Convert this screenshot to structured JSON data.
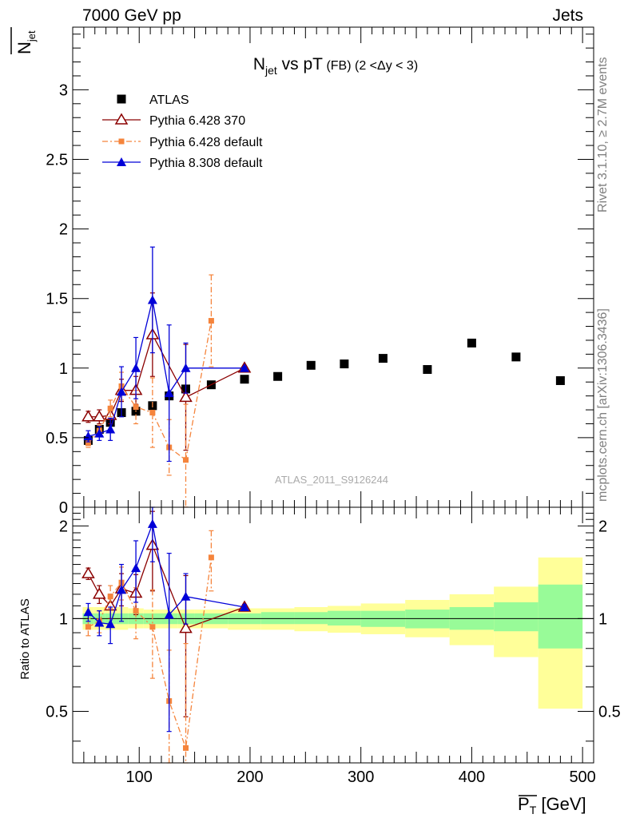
{
  "header": {
    "left": "7000 GeV pp",
    "right": "Jets"
  },
  "side_labels": {
    "rivet": "Rivet 3.1.10, ≥ 2.7M events",
    "mcplots": "mcplots.cern.ch [arXiv:1306.3436]"
  },
  "chart_data": [
    {
      "type": "scatter",
      "title": "N_jet vs pT (FB) (2 < Δy < 3)",
      "title_parts": {
        "main": "N",
        "sub": "jet",
        "mid": " vs pT",
        "small": " (FB) (2 <Δy < 3)"
      },
      "ylabel": "N_jet",
      "ylabel_parts": {
        "main": "N",
        "sub": "jet"
      },
      "xlabel": "P_T [GeV]",
      "xlabel_parts": {
        "main": "P",
        "sub": "T",
        "unit": " [GeV]"
      },
      "xlim": [
        40,
        510
      ],
      "ylim": [
        0,
        3.45
      ],
      "yticks": [
        0,
        0.5,
        1,
        1.5,
        2,
        2.5,
        3
      ],
      "ytick_labels": [
        "0",
        "0.5",
        "1",
        "1.5",
        "2",
        "2.5",
        "3"
      ],
      "watermark": "ATLAS_2011_S9126244",
      "legend_position": "top-left",
      "series": [
        {
          "name": "ATLAS",
          "color": "#000000",
          "marker": "square",
          "x": [
            54,
            64,
            74,
            84,
            97,
            112,
            127,
            142,
            165,
            195,
            225,
            255,
            285,
            320,
            360,
            400,
            440,
            480
          ],
          "y": [
            0.48,
            0.56,
            0.61,
            0.68,
            0.69,
            0.73,
            0.8,
            0.85,
            0.88,
            0.92,
            0.94,
            1.02,
            1.03,
            1.07,
            0.99,
            1.18,
            1.08,
            0.91
          ],
          "yerr": [
            0.02,
            0.02,
            0.02,
            0.02,
            0.02,
            0.03,
            0.03,
            0.03,
            0.03,
            0.03,
            0.03,
            0.04,
            0.04,
            0.05,
            0.05,
            0.06,
            0.07,
            0.08
          ]
        },
        {
          "name": "Pythia 6.428 370",
          "color": "#8b0000",
          "marker": "triangle-open",
          "x": [
            54,
            64,
            74,
            84,
            97,
            112,
            142,
            195
          ],
          "y": [
            0.65,
            0.65,
            0.66,
            0.84,
            0.84,
            1.24,
            0.79,
            1.0
          ],
          "yerr": [
            0.04,
            0.05,
            0.06,
            0.08,
            0.1,
            0.3,
            0.38,
            0.01
          ]
        },
        {
          "name": "Pythia 6.428 default",
          "color": "#f5843c",
          "marker": "square-small",
          "dash": true,
          "x": [
            54,
            64,
            74,
            84,
            97,
            112,
            127,
            142,
            165
          ],
          "y": [
            0.46,
            0.55,
            0.71,
            0.87,
            0.72,
            0.68,
            0.43,
            0.34,
            1.34
          ],
          "yerr": [
            0.03,
            0.04,
            0.06,
            0.1,
            0.12,
            0.25,
            0.2,
            0.4,
            0.33
          ]
        },
        {
          "name": "Pythia 8.308 default",
          "color": "#0000d8",
          "marker": "triangle",
          "x": [
            54,
            64,
            74,
            84,
            97,
            112,
            127,
            142,
            195
          ],
          "y": [
            0.51,
            0.53,
            0.56,
            0.83,
            1.0,
            1.49,
            0.82,
            1.0,
            1.0
          ],
          "yerr": [
            0.04,
            0.05,
            0.08,
            0.18,
            0.22,
            0.38,
            0.49,
            0.18,
            0.01
          ]
        }
      ]
    },
    {
      "type": "scatter",
      "ylabel": "Ratio to ATLAS",
      "xlim": [
        40,
        510
      ],
      "ylim": [
        0.34,
        2.3
      ],
      "yticks": [
        0.5,
        1,
        2
      ],
      "ytick_labels": [
        "0.5",
        "1",
        "2"
      ],
      "xticks": [
        100,
        200,
        300,
        400,
        500
      ],
      "xtick_labels": [
        "100",
        "200",
        "300",
        "400",
        "500"
      ],
      "reference_line": 1,
      "uncertainty_bands": {
        "bins": [
          [
            49,
            59
          ],
          [
            59,
            69
          ],
          [
            69,
            79
          ],
          [
            79,
            90
          ],
          [
            90,
            104
          ],
          [
            104,
            120
          ],
          [
            120,
            135
          ],
          [
            135,
            150
          ],
          [
            150,
            180
          ],
          [
            180,
            210
          ],
          [
            210,
            240
          ],
          [
            240,
            270
          ],
          [
            270,
            300
          ],
          [
            300,
            340
          ],
          [
            340,
            380
          ],
          [
            380,
            420
          ],
          [
            420,
            460
          ],
          [
            460,
            500
          ]
        ],
        "stat_color": "#98fb98",
        "syst_color": "#ffff99",
        "inner": [
          [
            0.96,
            1.04
          ],
          [
            0.96,
            1.04
          ],
          [
            0.96,
            1.04
          ],
          [
            0.96,
            1.04
          ],
          [
            0.96,
            1.04
          ],
          [
            0.96,
            1.04
          ],
          [
            0.96,
            1.04
          ],
          [
            0.96,
            1.04
          ],
          [
            0.96,
            1.04
          ],
          [
            0.96,
            1.04
          ],
          [
            0.96,
            1.05
          ],
          [
            0.96,
            1.05
          ],
          [
            0.95,
            1.06
          ],
          [
            0.94,
            1.06
          ],
          [
            0.93,
            1.07
          ],
          [
            0.92,
            1.09
          ],
          [
            0.91,
            1.13
          ],
          [
            0.8,
            1.29
          ]
        ],
        "outer": [
          [
            0.92,
            1.09
          ],
          [
            0.92,
            1.09
          ],
          [
            0.92,
            1.09
          ],
          [
            0.92,
            1.09
          ],
          [
            0.93,
            1.08
          ],
          [
            0.93,
            1.07
          ],
          [
            0.93,
            1.07
          ],
          [
            0.93,
            1.07
          ],
          [
            0.93,
            1.07
          ],
          [
            0.92,
            1.08
          ],
          [
            0.92,
            1.08
          ],
          [
            0.91,
            1.09
          ],
          [
            0.9,
            1.1
          ],
          [
            0.89,
            1.12
          ],
          [
            0.87,
            1.15
          ],
          [
            0.82,
            1.2
          ],
          [
            0.75,
            1.27
          ],
          [
            0.51,
            1.58
          ]
        ]
      },
      "series": [
        {
          "name": "Pythia 6.428 370",
          "color": "#8b0000",
          "marker": "triangle-open",
          "x": [
            54,
            64,
            74,
            84,
            97,
            112,
            142,
            195
          ],
          "y": [
            1.4,
            1.2,
            1.1,
            1.25,
            1.21,
            1.73,
            0.93,
            1.09
          ],
          "yerr": [
            0.06,
            0.08,
            0.1,
            0.15,
            0.18,
            0.5,
            0.45,
            0.02
          ]
        },
        {
          "name": "Pythia 6.428 default",
          "color": "#f5843c",
          "marker": "square-small",
          "dash": true,
          "x": [
            54,
            64,
            74,
            84,
            97,
            112,
            127,
            142,
            165
          ],
          "y": [
            0.94,
            0.98,
            1.18,
            1.31,
            1.06,
            0.94,
            0.54,
            0.38,
            1.58
          ],
          "yerr": [
            0.06,
            0.08,
            0.1,
            0.16,
            0.2,
            0.3,
            0.25,
            0.45,
            0.35
          ]
        },
        {
          "name": "Pythia 8.308 default",
          "color": "#0000d8",
          "marker": "triangle",
          "x": [
            54,
            64,
            74,
            84,
            97,
            112,
            127,
            142,
            195
          ],
          "y": [
            1.05,
            0.97,
            0.96,
            1.24,
            1.46,
            2.03,
            1.03,
            1.18,
            1.09
          ],
          "yerr": [
            0.07,
            0.09,
            0.13,
            0.26,
            0.33,
            0.5,
            0.6,
            0.22,
            0.02
          ]
        }
      ]
    }
  ]
}
